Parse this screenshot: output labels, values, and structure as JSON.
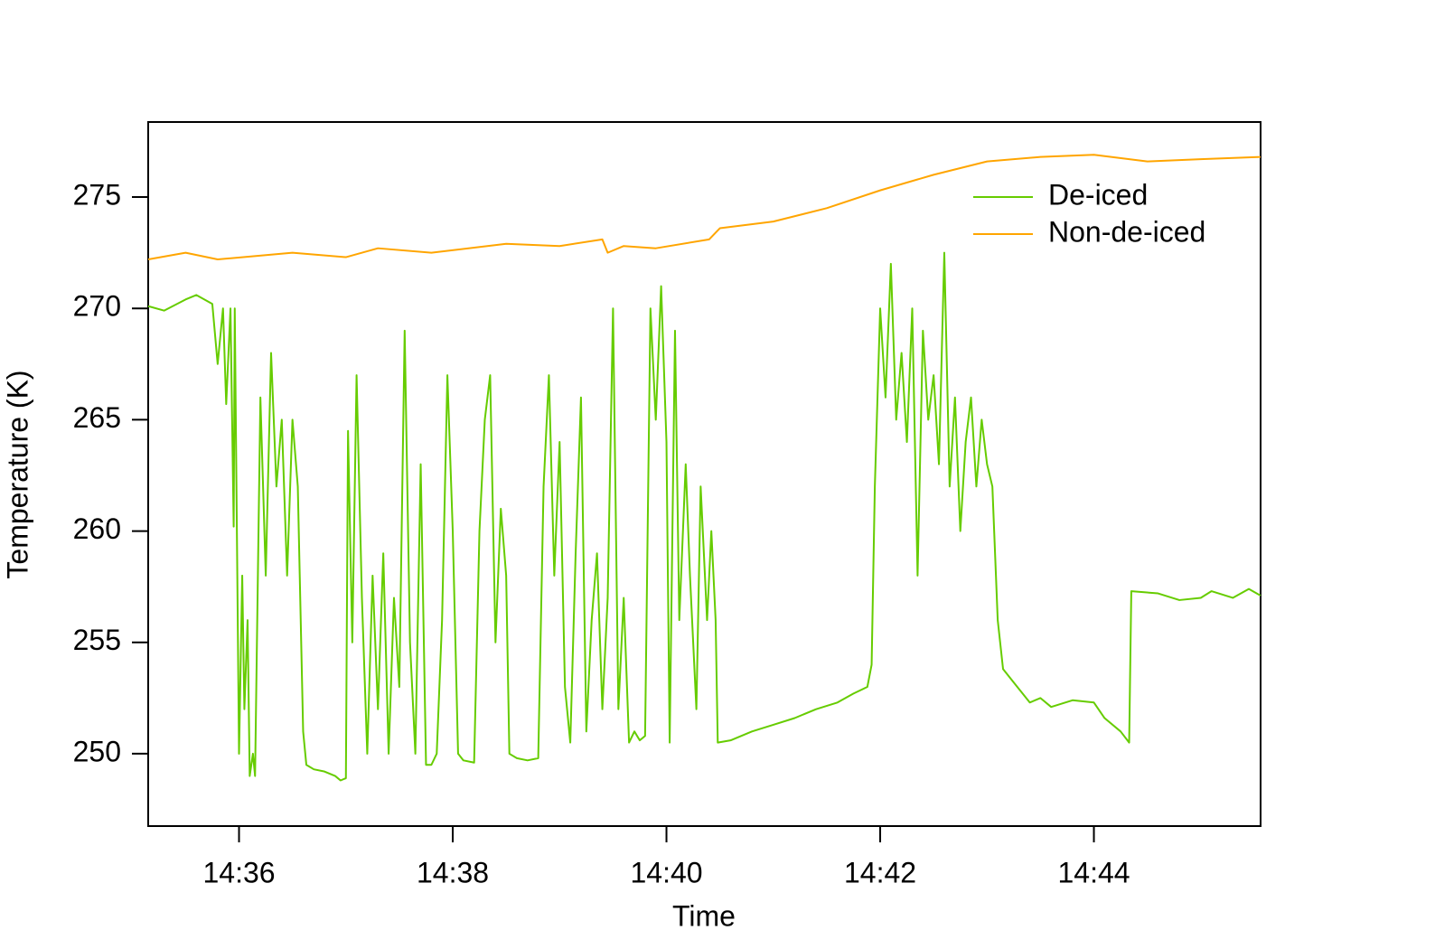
{
  "chart_data": {
    "type": "line",
    "xlabel": "Time",
    "ylabel": "Temperature (K)",
    "xlim": [
      875.15,
      885.56
    ],
    "ylim": [
      246.75,
      278.37
    ],
    "xticks": [
      {
        "value": 876,
        "label": "14:36"
      },
      {
        "value": 878,
        "label": "14:38"
      },
      {
        "value": 880,
        "label": "14:40"
      },
      {
        "value": 882,
        "label": "14:42"
      },
      {
        "value": 884,
        "label": "14:44"
      }
    ],
    "yticks": [
      250,
      255,
      260,
      265,
      270,
      275
    ],
    "legend": "topright",
    "series": [
      {
        "name": "De-iced",
        "color": "#66cc00",
        "x": [
          875.15,
          875.3,
          875.5,
          875.6,
          875.75,
          875.8,
          875.85,
          875.88,
          875.92,
          875.95,
          875.96,
          876.0,
          876.03,
          876.05,
          876.08,
          876.1,
          876.13,
          876.15,
          876.2,
          876.25,
          876.28,
          876.3,
          876.35,
          876.4,
          876.45,
          876.5,
          876.55,
          876.6,
          876.63,
          876.7,
          876.8,
          876.9,
          876.95,
          877.0,
          877.02,
          877.06,
          877.1,
          877.15,
          877.2,
          877.25,
          877.3,
          877.35,
          877.4,
          877.45,
          877.5,
          877.55,
          877.6,
          877.65,
          877.7,
          877.75,
          877.8,
          877.85,
          877.9,
          877.95,
          878.0,
          878.05,
          878.1,
          878.2,
          878.25,
          878.3,
          878.35,
          878.4,
          878.45,
          878.5,
          878.53,
          878.6,
          878.7,
          878.8,
          878.85,
          878.9,
          878.95,
          879.0,
          879.05,
          879.1,
          879.15,
          879.2,
          879.25,
          879.3,
          879.35,
          879.4,
          879.45,
          879.5,
          879.55,
          879.6,
          879.65,
          879.7,
          879.75,
          879.8,
          879.85,
          879.9,
          879.95,
          880.0,
          880.03,
          880.08,
          880.12,
          880.18,
          880.22,
          880.28,
          880.32,
          880.38,
          880.42,
          880.46,
          880.48,
          880.6,
          880.8,
          881.0,
          881.2,
          881.4,
          881.6,
          881.75,
          881.88,
          881.92,
          881.95,
          882.0,
          882.05,
          882.1,
          882.15,
          882.2,
          882.25,
          882.3,
          882.35,
          882.4,
          882.45,
          882.5,
          882.55,
          882.6,
          882.65,
          882.7,
          882.75,
          882.8,
          882.85,
          882.9,
          882.95,
          883.0,
          883.05,
          883.1,
          883.15,
          883.25,
          883.4,
          883.5,
          883.6,
          883.8,
          884.0,
          884.1,
          884.25,
          884.33,
          884.35,
          884.6,
          884.8,
          885.0,
          885.1,
          885.3,
          885.45,
          885.56
        ],
        "values": [
          270.1,
          269.9,
          270.4,
          270.6,
          270.2,
          267.5,
          270.0,
          265.7,
          270.0,
          260.2,
          270.0,
          250,
          258,
          252,
          256,
          249,
          250,
          249,
          266,
          258,
          264,
          268,
          262,
          265,
          258,
          265,
          262,
          251,
          249.5,
          249.3,
          249.2,
          249.0,
          248.8,
          248.9,
          264.5,
          255,
          267,
          257,
          250,
          258,
          252,
          259,
          250,
          257,
          253,
          269,
          255,
          250,
          263,
          249.5,
          249.5,
          250,
          256,
          267,
          260,
          250,
          249.7,
          249.6,
          260,
          265,
          267,
          255,
          261,
          258,
          250,
          249.8,
          249.7,
          249.8,
          262,
          267,
          258,
          264,
          253,
          250.5,
          259,
          266,
          251,
          256,
          259,
          252,
          257,
          270,
          252,
          257,
          250.5,
          251,
          250.6,
          250.8,
          270,
          265,
          271,
          264,
          250.5,
          269,
          256,
          263,
          258,
          252,
          262,
          256,
          260,
          256,
          250.5,
          250.6,
          251.0,
          251.3,
          251.6,
          252.0,
          252.3,
          252.7,
          253.0,
          254,
          262,
          270,
          266,
          272,
          265,
          268,
          264,
          270,
          258,
          269,
          265,
          267,
          263,
          272.5,
          262,
          266,
          260,
          264,
          266,
          262,
          265,
          263,
          262,
          256,
          253.8,
          253.2,
          252.3,
          252.5,
          252.1,
          252.4,
          252.3,
          251.6,
          251,
          250.5,
          257.3,
          257.2,
          256.9,
          257.0,
          257.3,
          257.0,
          257.4,
          257.1
        ]
      },
      {
        "name": "Non-de-iced",
        "color": "#ffa500",
        "x": [
          875.15,
          875.5,
          875.8,
          876.5,
          877.0,
          877.3,
          877.8,
          878.5,
          879.0,
          879.4,
          879.45,
          879.6,
          879.9,
          880.4,
          880.5,
          881.0,
          881.5,
          882.0,
          882.5,
          883.0,
          883.5,
          884.0,
          884.5,
          885.0,
          885.56
        ],
        "values": [
          272.2,
          272.5,
          272.2,
          272.5,
          272.3,
          272.7,
          272.5,
          272.9,
          272.8,
          273.1,
          272.5,
          272.8,
          272.7,
          273.1,
          273.6,
          273.9,
          274.5,
          275.3,
          276.0,
          276.6,
          276.8,
          276.9,
          276.6,
          276.7,
          276.8
        ]
      }
    ]
  }
}
